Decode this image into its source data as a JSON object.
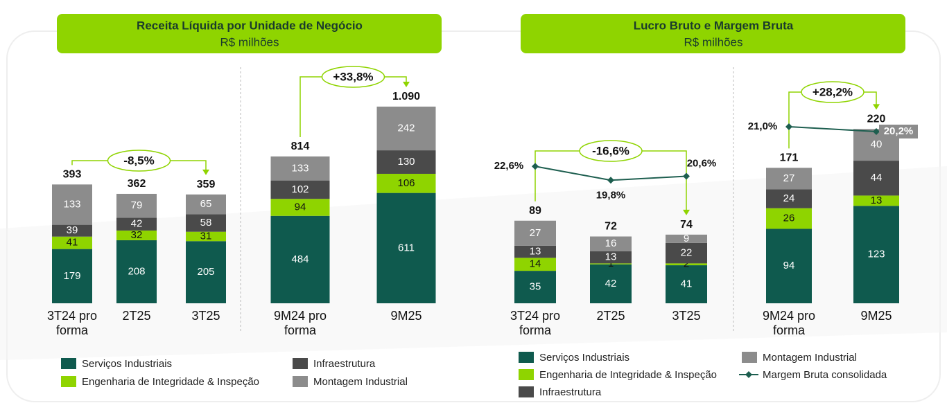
{
  "chart_data": [
    {
      "type": "bar",
      "title": "Receita Líquida por Unidade de Negócio",
      "subtitle": "R$ milhões",
      "categories": [
        "3T24 pro forma",
        "2T25",
        "3T25"
      ],
      "series": [
        {
          "name": "Serviços Industriais",
          "color": "#0f5a4e",
          "values": [
            179,
            208,
            205
          ]
        },
        {
          "name": "Engenharia de Integridade & Inspeção",
          "color": "#8fd400",
          "values": [
            41,
            32,
            31
          ]
        },
        {
          "name": "Infraestrutura",
          "color": "#4a4a4a",
          "values": [
            39,
            42,
            58
          ]
        },
        {
          "name": "Montagem Industrial",
          "color": "#8c8c8c",
          "values": [
            133,
            79,
            65
          ]
        }
      ],
      "totals": [
        393,
        362,
        359
      ],
      "annotation": "-8,5%",
      "ylim": [
        0,
        450
      ]
    },
    {
      "type": "bar",
      "categories": [
        "9M24 pro forma",
        "9M25"
      ],
      "series": [
        {
          "color": "#0f5a4e",
          "values": [
            484,
            611
          ]
        },
        {
          "color": "#8fd400",
          "values": [
            94,
            106
          ]
        },
        {
          "color": "#4a4a4a",
          "values": [
            102,
            130
          ]
        },
        {
          "color": "#8c8c8c",
          "values": [
            133,
            242
          ]
        }
      ],
      "totals": {
        "values": [
          814,
          1090
        ],
        "value_labels": [
          "814",
          "1.090"
        ]
      },
      "annotation": "+33,8%",
      "ylim": [
        0,
        1200
      ]
    },
    {
      "type": "bar",
      "title": "Lucro Bruto e Margem Bruta",
      "subtitle": "R$ milhões",
      "categories": [
        "3T24 pro forma",
        "2T25",
        "3T25"
      ],
      "series": [
        {
          "name": "Serviços Industriais",
          "color": "#0f5a4e",
          "values": [
            35,
            42,
            41
          ]
        },
        {
          "name": "Engenharia de Integridade & Inspeção",
          "color": "#8fd400",
          "values": [
            14,
            1,
            2
          ]
        },
        {
          "name": "Infraestrutura",
          "color": "#4a4a4a",
          "values": [
            13,
            13,
            22
          ]
        },
        {
          "name": "Montagem Industrial",
          "color": "#8c8c8c",
          "values": [
            27,
            16,
            9
          ]
        },
        {
          "name": "Margem Bruta consolidada",
          "type": "line",
          "axis": "y2",
          "color": "#1d5e4f",
          "values": [
            22.6,
            19.8,
            20.6
          ],
          "value_labels": [
            "22,6%",
            "19,8%",
            "20,6%"
          ]
        }
      ],
      "totals": [
        89,
        72,
        74
      ],
      "annotation": "-16,6%",
      "ylim": [
        0,
        100
      ],
      "y2lim": [
        15,
        25
      ]
    },
    {
      "type": "bar",
      "categories": [
        "9M24 pro forma",
        "9M25"
      ],
      "series": [
        {
          "color": "#0f5a4e",
          "values": [
            94,
            123
          ]
        },
        {
          "color": "#8fd400",
          "values": [
            26,
            13
          ]
        },
        {
          "color": "#4a4a4a",
          "values": [
            24,
            44
          ]
        },
        {
          "color": "#8c8c8c",
          "values": [
            27,
            40
          ]
        },
        {
          "type": "line",
          "axis": "y2",
          "color": "#1d5e4f",
          "values": [
            21.0,
            20.2
          ],
          "value_labels": [
            "21,0%",
            "20,2%"
          ]
        }
      ],
      "totals": [
        171,
        220
      ],
      "annotation": "+28,2%",
      "ylim": [
        0,
        250
      ],
      "y2lim": [
        15,
        25
      ]
    }
  ]
}
